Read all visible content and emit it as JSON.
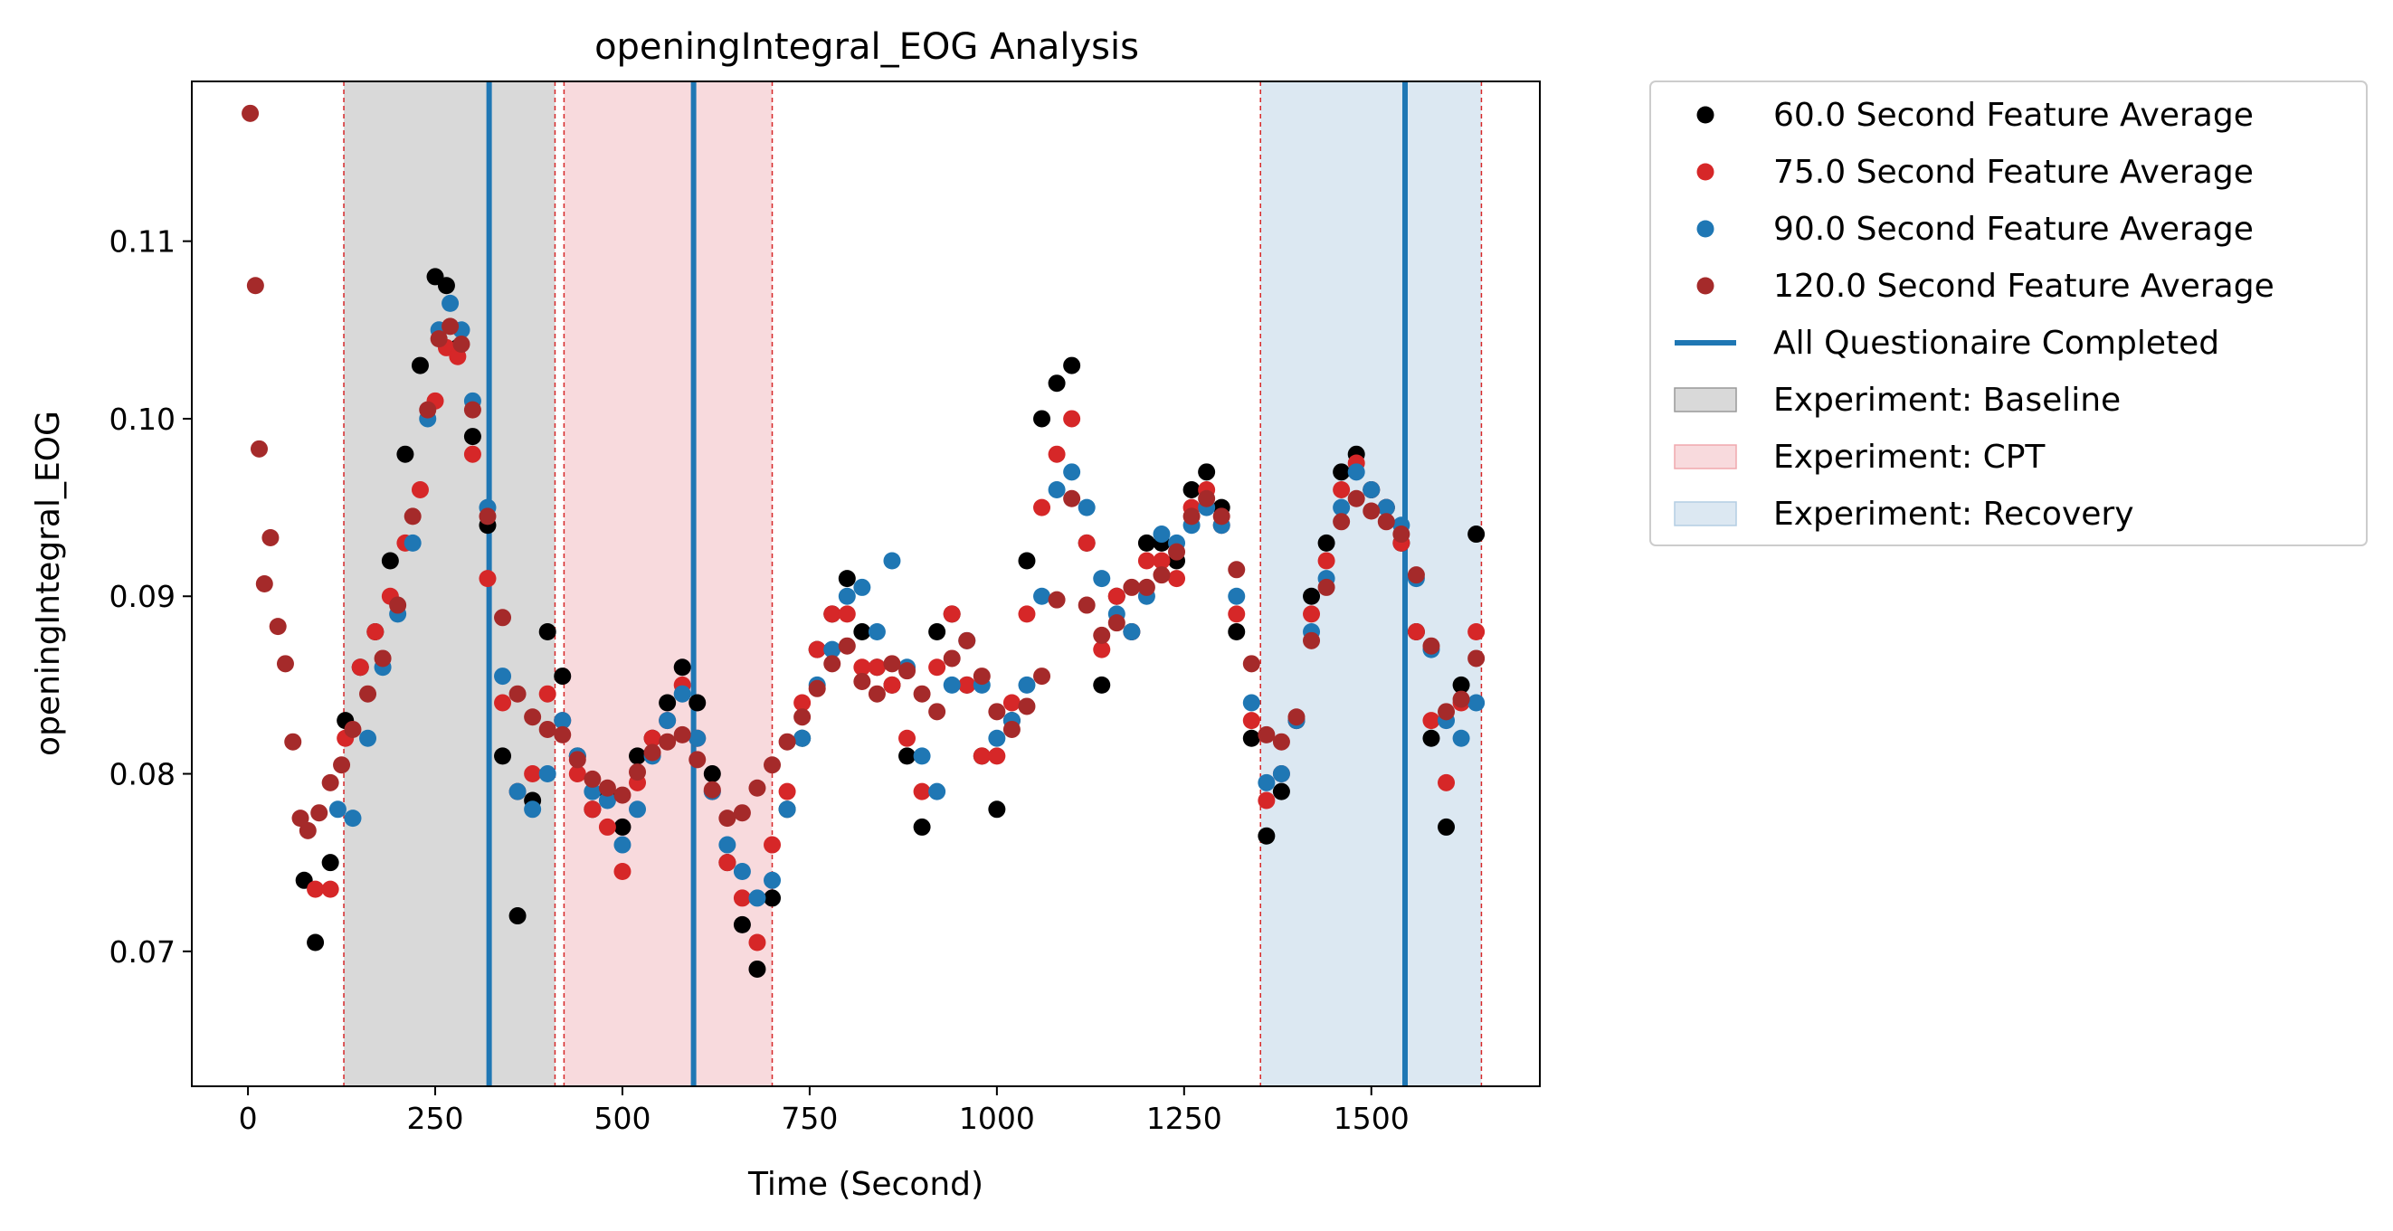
{
  "chart_data": {
    "type": "scatter",
    "title": "openingIntegral_EOG Analysis",
    "xlabel": "Time (Second)",
    "ylabel": "openingIntegral_EOG",
    "xlim": [
      -75,
      1725
    ],
    "ylim": [
      0.0624,
      0.119
    ],
    "xticks": [
      0,
      250,
      500,
      750,
      1000,
      1250,
      1500
    ],
    "yticks": [
      0.07,
      0.08,
      0.09,
      0.1,
      0.11
    ],
    "ytick_labels": [
      "0.07",
      "0.08",
      "0.09",
      "0.10",
      "0.11"
    ],
    "grid": false,
    "legend_position": "outside right, top",
    "spans": [
      {
        "name": "Experiment: Baseline",
        "x0": 128,
        "x1": 410,
        "color": "#d9d9d9"
      },
      {
        "name": "Experiment: CPT",
        "x0": 422,
        "x1": 700,
        "color": "#f8dadd"
      },
      {
        "name": "Experiment: Recovery",
        "x0": 1352,
        "x1": 1647,
        "color": "#dce8f2"
      }
    ],
    "questionnaire_lines": {
      "name": "All Questionaire Completed",
      "x": [
        322,
        595,
        1545
      ],
      "color": "#1f77b4"
    },
    "series": [
      {
        "name": "60.0 Second Feature Average",
        "color": "#000000",
        "x": [
          75,
          90,
          110,
          130,
          150,
          170,
          190,
          210,
          230,
          250,
          265,
          280,
          300,
          320,
          340,
          360,
          380,
          400,
          420,
          440,
          460,
          480,
          500,
          520,
          540,
          560,
          580,
          600,
          620,
          640,
          660,
          680,
          700,
          720,
          740,
          760,
          780,
          800,
          820,
          840,
          860,
          880,
          900,
          920,
          940,
          960,
          980,
          1000,
          1020,
          1040,
          1060,
          1080,
          1100,
          1120,
          1140,
          1160,
          1180,
          1200,
          1220,
          1240,
          1260,
          1280,
          1300,
          1320,
          1340,
          1360,
          1380,
          1400,
          1420,
          1440,
          1460,
          1480,
          1500,
          1520,
          1540,
          1560,
          1580,
          1600,
          1620,
          1640
        ],
        "y": [
          0.074,
          0.0705,
          0.075,
          0.083,
          0.086,
          0.088,
          0.092,
          0.098,
          0.103,
          0.108,
          0.1075,
          0.104,
          0.099,
          0.094,
          0.081,
          0.072,
          0.0785,
          0.088,
          0.0855,
          0.081,
          0.078,
          0.079,
          0.077,
          0.081,
          0.082,
          0.084,
          0.086,
          0.084,
          0.08,
          0.075,
          0.0715,
          0.069,
          0.073,
          0.078,
          0.082,
          0.087,
          0.089,
          0.091,
          0.088,
          0.086,
          0.085,
          0.081,
          0.077,
          0.088,
          0.089,
          0.085,
          0.081,
          0.078,
          0.083,
          0.092,
          0.1,
          0.102,
          0.103,
          0.093,
          0.085,
          0.09,
          0.088,
          0.093,
          0.093,
          0.092,
          0.096,
          0.097,
          0.095,
          0.088,
          0.082,
          0.0765,
          0.079,
          0.083,
          0.09,
          0.093,
          0.097,
          0.098,
          0.096,
          0.095,
          0.093,
          0.088,
          0.082,
          0.077,
          0.085,
          0.0935
        ]
      },
      {
        "name": "75.0 Second Feature Average",
        "color": "#d62728",
        "x": [
          90,
          110,
          130,
          150,
          170,
          190,
          210,
          230,
          250,
          265,
          280,
          300,
          320,
          340,
          360,
          380,
          400,
          420,
          440,
          460,
          480,
          500,
          520,
          540,
          560,
          580,
          600,
          620,
          640,
          660,
          680,
          700,
          720,
          740,
          760,
          780,
          800,
          820,
          840,
          860,
          880,
          900,
          920,
          940,
          960,
          980,
          1000,
          1020,
          1040,
          1060,
          1080,
          1100,
          1120,
          1140,
          1160,
          1180,
          1200,
          1220,
          1240,
          1260,
          1280,
          1300,
          1320,
          1340,
          1360,
          1380,
          1400,
          1420,
          1440,
          1460,
          1480,
          1500,
          1520,
          1540,
          1560,
          1580,
          1600,
          1620,
          1640
        ],
        "y": [
          0.0735,
          0.0735,
          0.082,
          0.086,
          0.088,
          0.09,
          0.093,
          0.096,
          0.101,
          0.104,
          0.1035,
          0.098,
          0.091,
          0.084,
          0.079,
          0.08,
          0.0845,
          0.083,
          0.08,
          0.078,
          0.077,
          0.0745,
          0.0795,
          0.082,
          0.083,
          0.085,
          0.082,
          0.079,
          0.075,
          0.073,
          0.0705,
          0.076,
          0.079,
          0.084,
          0.087,
          0.089,
          0.089,
          0.086,
          0.086,
          0.085,
          0.082,
          0.079,
          0.086,
          0.089,
          0.085,
          0.081,
          0.081,
          0.084,
          0.089,
          0.095,
          0.098,
          0.1,
          0.093,
          0.087,
          0.09,
          0.088,
          0.092,
          0.092,
          0.091,
          0.095,
          0.096,
          0.094,
          0.089,
          0.083,
          0.0785,
          0.08,
          0.083,
          0.089,
          0.092,
          0.096,
          0.0975,
          0.096,
          0.095,
          0.093,
          0.088,
          0.083,
          0.0795,
          0.084,
          0.088
        ]
      },
      {
        "name": "90.0 Second Feature Average",
        "color": "#1f77b4",
        "x": [
          120,
          140,
          160,
          180,
          200,
          220,
          240,
          255,
          270,
          285,
          300,
          320,
          340,
          360,
          380,
          400,
          420,
          440,
          460,
          480,
          500,
          520,
          540,
          560,
          580,
          600,
          620,
          640,
          660,
          680,
          700,
          720,
          740,
          760,
          780,
          800,
          820,
          840,
          860,
          880,
          900,
          920,
          940,
          960,
          980,
          1000,
          1020,
          1040,
          1060,
          1080,
          1100,
          1120,
          1140,
          1160,
          1180,
          1200,
          1220,
          1240,
          1260,
          1280,
          1300,
          1320,
          1340,
          1360,
          1380,
          1400,
          1420,
          1440,
          1460,
          1480,
          1500,
          1520,
          1540,
          1560,
          1580,
          1600,
          1620,
          1640
        ],
        "y": [
          0.078,
          0.0775,
          0.082,
          0.086,
          0.089,
          0.093,
          0.1,
          0.105,
          0.1065,
          0.105,
          0.101,
          0.095,
          0.0855,
          0.079,
          0.078,
          0.08,
          0.083,
          0.081,
          0.079,
          0.0785,
          0.076,
          0.078,
          0.081,
          0.083,
          0.0845,
          0.082,
          0.079,
          0.076,
          0.0745,
          0.073,
          0.074,
          0.078,
          0.082,
          0.085,
          0.087,
          0.09,
          0.0905,
          0.088,
          0.092,
          0.086,
          0.081,
          0.079,
          0.085,
          0.0875,
          0.085,
          0.082,
          0.083,
          0.085,
          0.09,
          0.096,
          0.097,
          0.095,
          0.091,
          0.089,
          0.088,
          0.09,
          0.0935,
          0.093,
          0.094,
          0.095,
          0.094,
          0.09,
          0.084,
          0.0795,
          0.08,
          0.083,
          0.088,
          0.091,
          0.095,
          0.097,
          0.096,
          0.095,
          0.094,
          0.091,
          0.087,
          0.083,
          0.082,
          0.084
        ]
      },
      {
        "name": "120.0 Second Feature Average",
        "color": "#a52a2a",
        "x": [
          3,
          10,
          15,
          22,
          30,
          40,
          50,
          60,
          70,
          80,
          95,
          110,
          125,
          140,
          160,
          180,
          200,
          220,
          240,
          255,
          270,
          285,
          300,
          320,
          340,
          360,
          380,
          400,
          420,
          440,
          460,
          480,
          500,
          520,
          540,
          560,
          580,
          600,
          620,
          640,
          660,
          680,
          700,
          720,
          740,
          760,
          780,
          800,
          820,
          840,
          860,
          880,
          900,
          920,
          940,
          960,
          980,
          1000,
          1020,
          1040,
          1060,
          1080,
          1100,
          1120,
          1140,
          1160,
          1180,
          1200,
          1220,
          1240,
          1260,
          1280,
          1300,
          1320,
          1340,
          1360,
          1380,
          1400,
          1420,
          1440,
          1460,
          1480,
          1500,
          1520,
          1540,
          1560,
          1580,
          1600,
          1620,
          1640
        ],
        "y": [
          0.1172,
          0.1075,
          0.0983,
          0.0907,
          0.0933,
          0.0883,
          0.0862,
          0.0818,
          0.0775,
          0.0768,
          0.0778,
          0.0795,
          0.0805,
          0.0825,
          0.0845,
          0.0865,
          0.0895,
          0.0945,
          0.1005,
          0.1045,
          0.1052,
          0.1042,
          0.1005,
          0.0945,
          0.0888,
          0.0845,
          0.0832,
          0.0825,
          0.0822,
          0.0808,
          0.0797,
          0.0792,
          0.0788,
          0.0801,
          0.0812,
          0.0818,
          0.0822,
          0.0808,
          0.0791,
          0.0775,
          0.0778,
          0.0792,
          0.0805,
          0.0818,
          0.0832,
          0.0848,
          0.0862,
          0.0872,
          0.0852,
          0.0845,
          0.0862,
          0.0858,
          0.0845,
          0.0835,
          0.0865,
          0.0875,
          0.0855,
          0.0835,
          0.0825,
          0.0838,
          0.0855,
          0.0898,
          0.0955,
          0.0895,
          0.0878,
          0.0885,
          0.0905,
          0.0905,
          0.0912,
          0.0925,
          0.0945,
          0.0955,
          0.0945,
          0.0915,
          0.0862,
          0.0822,
          0.0818,
          0.0832,
          0.0875,
          0.0905,
          0.0942,
          0.0955,
          0.0948,
          0.0942,
          0.0935,
          0.0912,
          0.0872,
          0.0835,
          0.0842,
          0.0865
        ]
      }
    ]
  }
}
